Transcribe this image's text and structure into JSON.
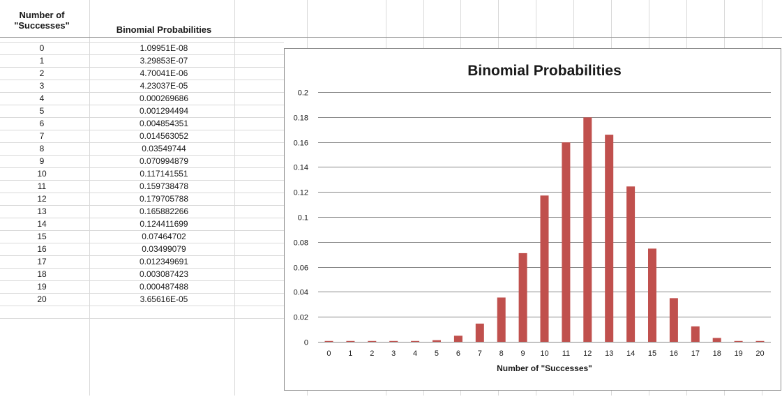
{
  "table": {
    "header_successes": "Number of \"Successes\"",
    "header_probabilities": "Binomial Probabilities",
    "rows": [
      {
        "k": "0",
        "p": "1.09951E-08"
      },
      {
        "k": "1",
        "p": "3.29853E-07"
      },
      {
        "k": "2",
        "p": "4.70041E-06"
      },
      {
        "k": "3",
        "p": "4.23037E-05"
      },
      {
        "k": "4",
        "p": "0.000269686"
      },
      {
        "k": "5",
        "p": "0.001294494"
      },
      {
        "k": "6",
        "p": "0.004854351"
      },
      {
        "k": "7",
        "p": "0.014563052"
      },
      {
        "k": "8",
        "p": "0.03549744"
      },
      {
        "k": "9",
        "p": "0.070994879"
      },
      {
        "k": "10",
        "p": "0.117141551"
      },
      {
        "k": "11",
        "p": "0.159738478"
      },
      {
        "k": "12",
        "p": "0.179705788"
      },
      {
        "k": "13",
        "p": "0.165882266"
      },
      {
        "k": "14",
        "p": "0.124411699"
      },
      {
        "k": "15",
        "p": "0.07464702"
      },
      {
        "k": "16",
        "p": "0.03499079"
      },
      {
        "k": "17",
        "p": "0.012349691"
      },
      {
        "k": "18",
        "p": "0.003087423"
      },
      {
        "k": "19",
        "p": "0.000487488"
      },
      {
        "k": "20",
        "p": "3.65616E-05"
      }
    ]
  },
  "chart_data": {
    "type": "bar",
    "title": "Binomial Probabilities",
    "xlabel": "Number of \"Successes\"",
    "ylabel": "",
    "categories": [
      "0",
      "1",
      "2",
      "3",
      "4",
      "5",
      "6",
      "7",
      "8",
      "9",
      "10",
      "11",
      "12",
      "13",
      "14",
      "15",
      "16",
      "17",
      "18",
      "19",
      "20"
    ],
    "values": [
      1.09951e-08,
      3.29853e-07,
      4.70041e-06,
      4.23037e-05,
      0.000269686,
      0.001294494,
      0.004854351,
      0.014563052,
      0.03549744,
      0.070994879,
      0.117141551,
      0.159738478,
      0.179705788,
      0.165882266,
      0.124411699,
      0.07464702,
      0.03499079,
      0.012349691,
      0.003087423,
      0.000487488,
      3.65616e-05
    ],
    "ylim": [
      0,
      0.2
    ],
    "yticks": [
      "0",
      "0.02",
      "0.04",
      "0.06",
      "0.08",
      "0.1",
      "0.12",
      "0.14",
      "0.16",
      "0.18",
      "0.2"
    ],
    "grid": true,
    "legend": "none",
    "bar_color": "#c0504d",
    "gridline_color": "#868686"
  }
}
